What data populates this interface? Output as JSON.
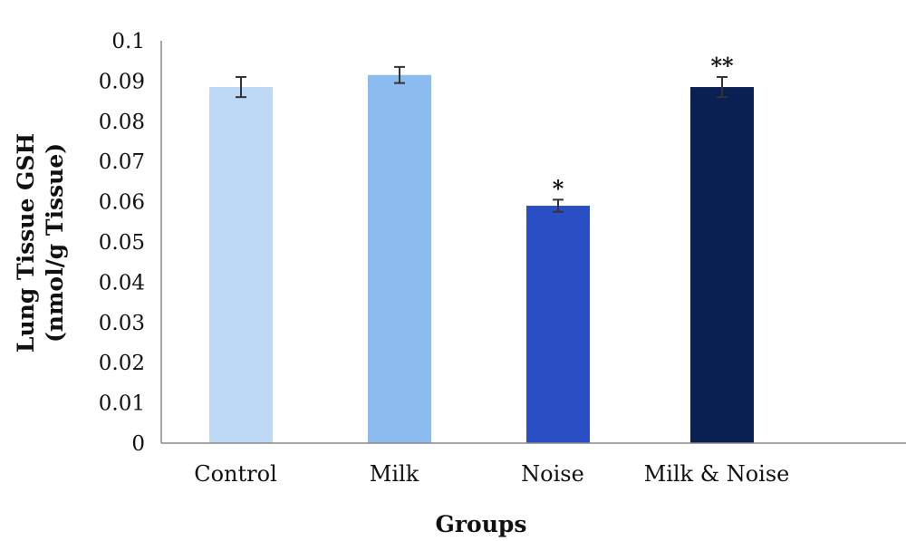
{
  "chart_data": {
    "type": "bar",
    "categories": [
      "Control",
      "Milk",
      "Noise",
      "Milk & Noise"
    ],
    "values": [
      0.0885,
      0.0915,
      0.059,
      0.0885
    ],
    "errors": [
      0.0025,
      0.002,
      0.0015,
      0.0025
    ],
    "significance": [
      "",
      "",
      "*",
      "**"
    ],
    "colors": [
      "#bdd9f5",
      "#8cbcef",
      "#2a4fc4",
      "#0a1f52"
    ],
    "xlabel": "Groups",
    "ylabel_line1": "Lung Tissue GSH",
    "ylabel_line2": "(nmol/g Tissue)",
    "ylim": [
      0,
      0.1
    ],
    "yticks": [
      "0",
      "0.01",
      "0.02",
      "0.03",
      "0.04",
      "0.05",
      "0.06",
      "0.07",
      "0.08",
      "0.09",
      "0.1"
    ],
    "grid": false,
    "legend": "none"
  }
}
